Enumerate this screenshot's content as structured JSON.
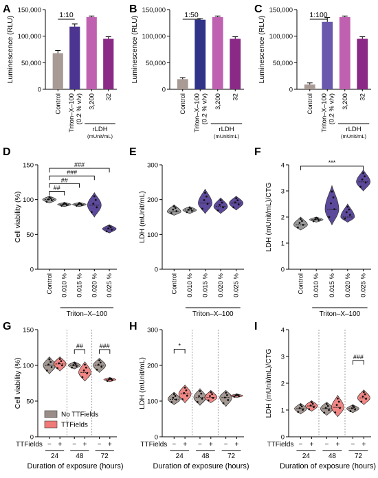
{
  "chart_data": [
    {
      "panel": "A",
      "type": "bar",
      "ylabel": "Luminescence (RLU)",
      "ylim": [
        0,
        150000
      ],
      "yticks": [
        0,
        50000,
        100000,
        150000
      ],
      "ytick_labels": [
        "0",
        "50,000",
        "100,000",
        "150,000"
      ],
      "categories": [
        "Control",
        "Triton–X–100 (0.2 % v/v)",
        "3,200",
        "32"
      ],
      "values": [
        68000,
        118000,
        136000,
        95000
      ],
      "errors": [
        5000,
        5000,
        2000,
        4000
      ],
      "colors": [
        "#a89a94",
        "#4b3591",
        "#c060b0",
        "#8a2a86"
      ],
      "group_label": "rLDH",
      "group_unit": "(mUnit/mL)",
      "ratio": "1:10",
      "ratio_span": [
        0,
        1
      ]
    },
    {
      "panel": "B",
      "type": "bar",
      "ylabel": "Luminescence (RLU)",
      "ylim": [
        0,
        150000
      ],
      "yticks": [
        0,
        50000,
        100000,
        150000
      ],
      "ytick_labels": [
        "0",
        "50,000",
        "100,000",
        "150,000"
      ],
      "categories": [
        "Control",
        "Triton–X–100 (0.2 % v/v)",
        "3,200",
        "32"
      ],
      "values": [
        19000,
        131000,
        136000,
        95000
      ],
      "errors": [
        3000,
        2000,
        2000,
        4000
      ],
      "colors": [
        "#a89a94",
        "#2f3488",
        "#c060b0",
        "#8a2a86"
      ],
      "group_label": "rLDH",
      "group_unit": "(mUnit/mL)",
      "ratio": "1:50",
      "ratio_span": [
        0,
        1
      ]
    },
    {
      "panel": "C",
      "type": "bar",
      "ylabel": "Luminescence (RLU)",
      "ylim": [
        0,
        150000
      ],
      "yticks": [
        0,
        50000,
        100000,
        150000
      ],
      "ytick_labels": [
        "0",
        "50,000",
        "100,000",
        "150,000"
      ],
      "categories": [
        "Control",
        "Triton–X–100 (0.2 % v/v)",
        "3,200",
        "32"
      ],
      "values": [
        9000,
        127000,
        136000,
        95000
      ],
      "errors": [
        3000,
        8000,
        2000,
        4000
      ],
      "colors": [
        "#a89a94",
        "#6a58ad",
        "#c060b0",
        "#8a2a86"
      ],
      "group_label": "rLDH",
      "group_unit": "(mUnit/mL)",
      "ratio": "1:100",
      "ratio_span": [
        0,
        1
      ]
    },
    {
      "panel": "D",
      "type": "violin",
      "ylabel": "Cell viability (%)",
      "ylim": [
        0,
        150
      ],
      "yticks": [
        0,
        50,
        100,
        150
      ],
      "ytick_labels": [
        "0",
        "50",
        "100",
        "150"
      ],
      "categories": [
        "Control",
        "0.010 %",
        "0.015 %",
        "0.020 %",
        "0.025 %"
      ],
      "medians": [
        100,
        93,
        93,
        92,
        58
      ],
      "ranges": [
        [
          95,
          105
        ],
        [
          90,
          96
        ],
        [
          90,
          96
        ],
        [
          75,
          110
        ],
        [
          52,
          64
        ]
      ],
      "colors": [
        "#8f8f8f",
        "#8f8f8f",
        "#8f8f8f",
        "#4b3591",
        "#4b3591"
      ],
      "group_label": "Triton–X–100",
      "brackets": [
        {
          "a": 0,
          "b": 1,
          "label": "##",
          "y": 112
        },
        {
          "a": 0,
          "b": 2,
          "label": "##",
          "y": 123
        },
        {
          "a": 0,
          "b": 3,
          "label": "###",
          "y": 134
        },
        {
          "a": 0,
          "b": 4,
          "label": "###",
          "y": 145
        }
      ]
    },
    {
      "panel": "E",
      "type": "violin",
      "ylabel": "LDH (mUnit/mL)",
      "ylim": [
        0,
        300
      ],
      "yticks": [
        0,
        100,
        200,
        300
      ],
      "ytick_labels": [
        "0",
        "100",
        "200",
        "300"
      ],
      "categories": [
        "Control",
        "0.010 %",
        "0.015 %",
        "0.020 %",
        "0.025 %"
      ],
      "medians": [
        165,
        170,
        190,
        180,
        190
      ],
      "ranges": [
        [
          155,
          185
        ],
        [
          160,
          180
        ],
        [
          160,
          230
        ],
        [
          160,
          205
        ],
        [
          170,
          210
        ]
      ],
      "colors": [
        "#8f8f8f",
        "#8f8f8f",
        "#4b3591",
        "#4b3591",
        "#4b3591"
      ],
      "group_label": "Triton–X–100",
      "brackets": []
    },
    {
      "panel": "F",
      "type": "violin",
      "ylabel": "LDH (mUnit/mL)/CTG",
      "ylim": [
        0,
        4
      ],
      "yticks": [
        0,
        1,
        2,
        3,
        4
      ],
      "ytick_labels": [
        "0",
        "1",
        "2",
        "3",
        "4"
      ],
      "categories": [
        "Control",
        "0.010 %",
        "0.015 %",
        "0.020 %",
        "0.025 %"
      ],
      "medians": [
        1.7,
        1.9,
        2.3,
        2.0,
        3.35
      ],
      "ranges": [
        [
          1.5,
          2.0
        ],
        [
          1.8,
          2.0
        ],
        [
          1.7,
          3.2
        ],
        [
          1.8,
          2.5
        ],
        [
          3.0,
          3.8
        ]
      ],
      "colors": [
        "#8f8f8f",
        "#8f8f8f",
        "#4b3591",
        "#4b3591",
        "#4b3591"
      ],
      "group_label": "Triton–X–100",
      "brackets": [
        {
          "a": 0,
          "b": 4,
          "label": "***",
          "y": 3.95
        }
      ]
    },
    {
      "panel": "G",
      "type": "violin",
      "ylabel": "Cell viability (%)",
      "ylim": [
        0,
        150
      ],
      "yticks": [
        0,
        50,
        100,
        150
      ],
      "ytick_labels": [
        "0",
        "50",
        "100",
        "150"
      ],
      "groups": [
        "24",
        "48",
        "72"
      ],
      "ttfields_row": [
        "−",
        "+",
        "−",
        "+",
        "−",
        "+"
      ],
      "medians": [
        100,
        102,
        100,
        90,
        100,
        80
      ],
      "ranges": [
        [
          88,
          112
        ],
        [
          92,
          112
        ],
        [
          95,
          105
        ],
        [
          78,
          105
        ],
        [
          90,
          110
        ],
        [
          77,
          83
        ]
      ],
      "legend": [
        "No TTFields",
        "TTFields"
      ],
      "legend_colors": [
        "#9a8d87",
        "#f07a78"
      ],
      "brackets": [
        {
          "a": 2,
          "b": 3,
          "label": "##",
          "y": 122
        },
        {
          "a": 4,
          "b": 5,
          "label": "###",
          "y": 122
        }
      ]
    },
    {
      "panel": "H",
      "type": "violin",
      "ylabel": "LDH (mUnit/mL)",
      "ylim": [
        0,
        300
      ],
      "yticks": [
        0,
        100,
        200,
        300
      ],
      "ytick_labels": [
        "0",
        "100",
        "200",
        "300"
      ],
      "groups": [
        "24",
        "48",
        "72"
      ],
      "ttfields_row": [
        "−",
        "+",
        "−",
        "+",
        "−",
        "+"
      ],
      "medians": [
        105,
        120,
        110,
        110,
        110,
        115
      ],
      "ranges": [
        [
          90,
          125
        ],
        [
          95,
          145
        ],
        [
          88,
          135
        ],
        [
          95,
          130
        ],
        [
          85,
          130
        ],
        [
          110,
          120
        ]
      ],
      "brackets": [
        {
          "a": 0,
          "b": 1,
          "label": "*",
          "y": 245
        }
      ]
    },
    {
      "panel": "I",
      "type": "violin",
      "ylabel": "LDH (mUnit/mL)/CTG",
      "ylim": [
        0,
        4
      ],
      "yticks": [
        0,
        1,
        2,
        3,
        4
      ],
      "ytick_labels": [
        "0",
        "1",
        "2",
        "3",
        "4"
      ],
      "groups": [
        "24",
        "48",
        "72"
      ],
      "ttfields_row": [
        "−",
        "+",
        "−",
        "+",
        "−",
        "+"
      ],
      "medians": [
        1.05,
        1.15,
        1.05,
        1.1,
        1.05,
        1.45
      ],
      "ranges": [
        [
          0.85,
          1.25
        ],
        [
          0.95,
          1.35
        ],
        [
          0.8,
          1.3
        ],
        [
          0.75,
          1.55
        ],
        [
          0.9,
          1.2
        ],
        [
          1.2,
          1.75
        ]
      ],
      "brackets": [
        {
          "a": 4,
          "b": 5,
          "label": "###",
          "y": 2.85
        }
      ]
    }
  ],
  "ttfields_label": "TTFields",
  "xlabel_bottom": "Duration of exposure (hours)",
  "violin_gray": "#9a8d87",
  "violin_red": "#f07a78"
}
